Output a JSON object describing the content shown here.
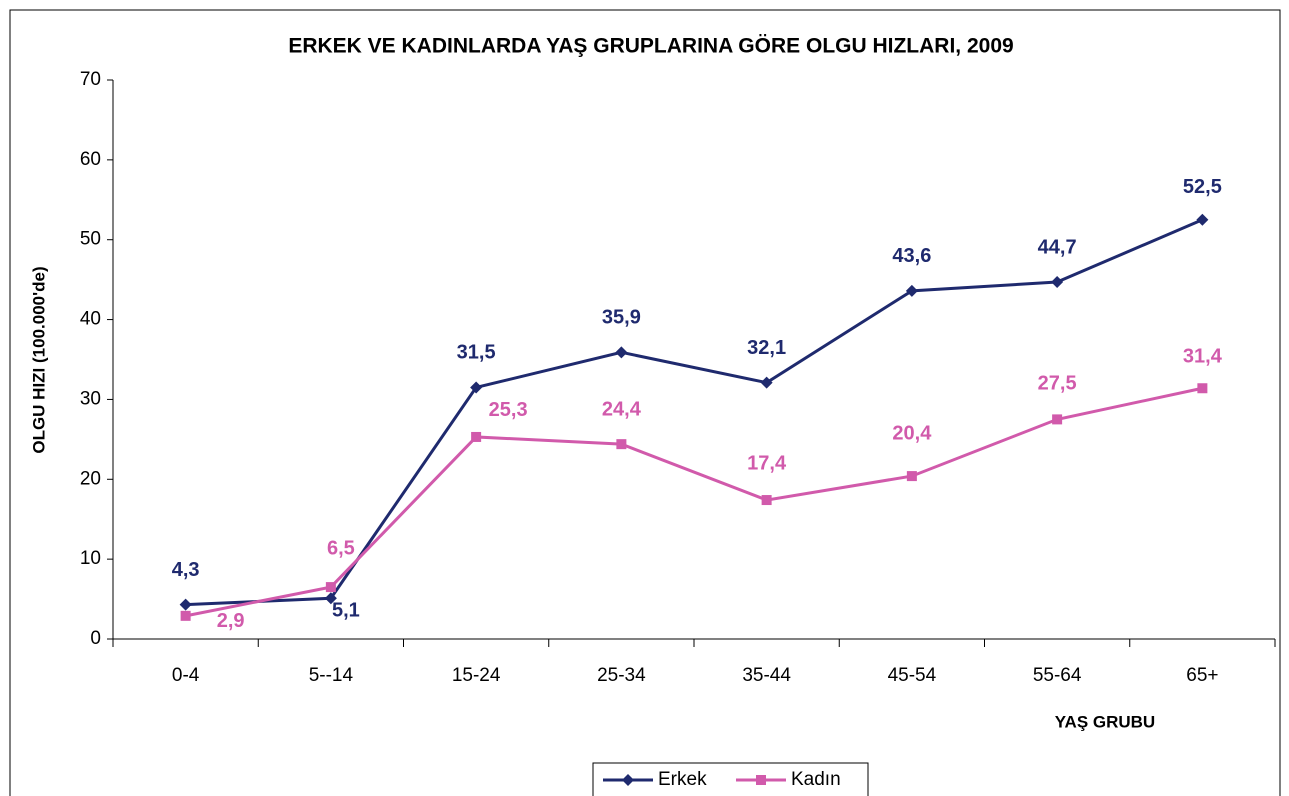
{
  "chart_data": {
    "type": "line",
    "title": "ERKEK VE KADINLARDA YAŞ GRUPLARINA GÖRE OLGU HIZLARI,  2009",
    "y_label": "OLGU HIZI (100.000'de)",
    "x_label": "YAŞ GRUBU",
    "categories": [
      "0-4",
      "5--14",
      "15-24",
      "25-34",
      "35-44",
      "45-54",
      "55-64",
      "65+"
    ],
    "series": [
      {
        "name": "Erkek",
        "color": "#1f2a6e",
        "marker": "diamond",
        "values": [
          4.3,
          5.1,
          31.5,
          35.9,
          32.1,
          43.6,
          44.7,
          52.5
        ],
        "value_labels": [
          "4,3",
          "5,1",
          "31,5",
          "35,9",
          "32,1",
          "43,6",
          "44,7",
          "52,5"
        ]
      },
      {
        "name": "Kadın",
        "color": "#d15aab",
        "marker": "square",
        "values": [
          2.9,
          6.5,
          25.3,
          24.4,
          17.4,
          20.4,
          27.5,
          31.4
        ],
        "value_labels": [
          "2,9",
          "6,5",
          "25,3",
          "24,4",
          "17,4",
          "20,4",
          "27,5",
          "31,4"
        ]
      }
    ],
    "ylim": [
      0,
      70
    ],
    "yticks": [
      0,
      10,
      20,
      30,
      40,
      50,
      60,
      70
    ],
    "grid": false,
    "legend": "bottom"
  }
}
